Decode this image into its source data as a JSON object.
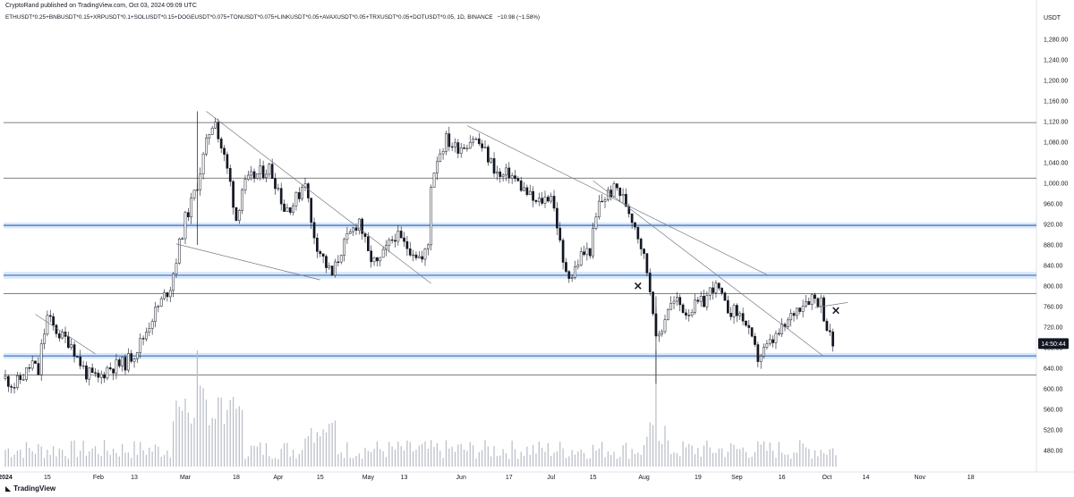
{
  "header": {
    "published": "CryptoRand published on TradingView.com, Oct 03, 2024 09:09 UTC",
    "symbol": "ETHUSDT*0.25+BNBUSDT*0.15+XRPUSDT*0.1+SOLUSDT*0.15+DOGEUSDT*0.075+TONUSDT*0.075+LINKUSDT*0.05+AVAXUSDT*0.05+TRXUSDT*0.05+DOTUSDT*0.05, 1D, BINANCE",
    "change": "−10.98 (−1.58%)"
  },
  "footer": {
    "brand": "TradingView",
    "logo_icon": "tradingview-logo-icon"
  },
  "chart_data": {
    "type": "candlestick",
    "currency": "USDT",
    "price_axis": {
      "ticks": [
        "1,280.00",
        "1,240.00",
        "1,200.00",
        "1,160.00",
        "1,120.00",
        "1,080.00",
        "1,040.00",
        "1,000.00",
        "960.00",
        "920.00",
        "880.00",
        "840.00",
        "800.00",
        "760.00",
        "720.00",
        "680.00",
        "640.00",
        "600.00",
        "560.00",
        "520.00",
        "480.00"
      ],
      "range": [
        462,
        1310
      ]
    },
    "time_axis": {
      "ticks": [
        "2024",
        "15",
        "Feb",
        "13",
        "Mar",
        "18",
        "Apr",
        "15",
        "May",
        "13",
        "Jun",
        "17",
        "Jul",
        "15",
        "Aug",
        "19",
        "Sep",
        "16",
        "Oct",
        "14",
        "Nov",
        "18"
      ]
    },
    "countdown_label": "14:50:44",
    "last_price": 688,
    "horizontal_levels": [
      1118,
      1010,
      785,
      627
    ],
    "support_zones": [
      [
        914,
        922
      ],
      [
        816,
        826
      ],
      [
        660,
        668
      ]
    ],
    "trendlines": [
      {
        "from": [
          "2024-03-08",
          1140
        ],
        "to": [
          "2024-05-22",
          805
        ]
      },
      {
        "from": [
          "2024-02-27",
          882
        ],
        "to": [
          "2024-04-15",
          812
        ]
      },
      {
        "from": [
          "2024-01-11",
          745
        ],
        "to": [
          "2024-01-31",
          668
        ]
      },
      {
        "from": [
          "2024-06-03",
          1112
        ],
        "to": [
          "2024-09-11",
          822
        ]
      },
      {
        "from": [
          "2024-07-15",
          1005
        ],
        "to": [
          "2024-09-30",
          663
        ]
      },
      {
        "from": [
          "2024-09-27",
          758
        ],
        "to": [
          "2024-10-08",
          768
        ]
      }
    ],
    "markers": [
      {
        "date": "2024-07-30",
        "price": 800,
        "symbol": "×"
      },
      {
        "date": "2024-10-04",
        "price": 752,
        "symbol": "×"
      }
    ],
    "close_path": [
      [
        "2024-01-01",
        620
      ],
      [
        "2024-01-04",
        607
      ],
      [
        "2024-01-07",
        625
      ],
      [
        "2024-01-10",
        650
      ],
      [
        "2024-01-12",
        630
      ],
      [
        "2024-01-13",
        680
      ],
      [
        "2024-01-15",
        740
      ],
      [
        "2024-01-17",
        720
      ],
      [
        "2024-01-20",
        700
      ],
      [
        "2024-01-23",
        690
      ],
      [
        "2024-01-25",
        660
      ],
      [
        "2024-01-28",
        630
      ],
      [
        "2024-02-01",
        618
      ],
      [
        "2024-02-04",
        640
      ],
      [
        "2024-02-07",
        645
      ],
      [
        "2024-02-10",
        650
      ],
      [
        "2024-02-13",
        670
      ],
      [
        "2024-02-16",
        700
      ],
      [
        "2024-02-19",
        740
      ],
      [
        "2024-02-22",
        770
      ],
      [
        "2024-02-25",
        800
      ],
      [
        "2024-02-28",
        880
      ],
      [
        "2024-03-01",
        930
      ],
      [
        "2024-03-03",
        960
      ],
      [
        "2024-03-05",
        1000
      ],
      [
        "2024-03-07",
        1050
      ],
      [
        "2024-03-09",
        1100
      ],
      [
        "2024-03-11",
        1130
      ],
      [
        "2024-03-12",
        1090
      ],
      [
        "2024-03-14",
        1050
      ],
      [
        "2024-03-16",
        1000
      ],
      [
        "2024-03-18",
        930
      ],
      [
        "2024-03-20",
        990
      ],
      [
        "2024-03-23",
        1010
      ],
      [
        "2024-03-26",
        1020
      ],
      [
        "2024-03-29",
        1030
      ],
      [
        "2024-04-01",
        990
      ],
      [
        "2024-04-03",
        950
      ],
      [
        "2024-04-06",
        960
      ],
      [
        "2024-04-08",
        980
      ],
      [
        "2024-04-10",
        1010
      ],
      [
        "2024-04-12",
        920
      ],
      [
        "2024-04-14",
        880
      ],
      [
        "2024-04-17",
        840
      ],
      [
        "2024-04-19",
        820
      ],
      [
        "2024-04-22",
        870
      ],
      [
        "2024-04-25",
        900
      ],
      [
        "2024-04-28",
        930
      ],
      [
        "2024-05-01",
        860
      ],
      [
        "2024-05-04",
        840
      ],
      [
        "2024-05-07",
        870
      ],
      [
        "2024-05-10",
        900
      ],
      [
        "2024-05-13",
        880
      ],
      [
        "2024-05-16",
        870
      ],
      [
        "2024-05-19",
        850
      ],
      [
        "2024-05-21",
        880
      ],
      [
        "2024-05-22",
        1000
      ],
      [
        "2024-05-24",
        1050
      ],
      [
        "2024-05-27",
        1085
      ],
      [
        "2024-05-30",
        1070
      ],
      [
        "2024-06-02",
        1075
      ],
      [
        "2024-06-05",
        1090
      ],
      [
        "2024-06-08",
        1070
      ],
      [
        "2024-06-11",
        1040
      ],
      [
        "2024-06-14",
        1010
      ],
      [
        "2024-06-17",
        1020
      ],
      [
        "2024-06-20",
        1000
      ],
      [
        "2024-06-23",
        980
      ],
      [
        "2024-06-26",
        960
      ],
      [
        "2024-06-29",
        970
      ],
      [
        "2024-07-01",
        980
      ],
      [
        "2024-07-03",
        920
      ],
      [
        "2024-07-05",
        840
      ],
      [
        "2024-07-08",
        820
      ],
      [
        "2024-07-11",
        860
      ],
      [
        "2024-07-14",
        870
      ],
      [
        "2024-07-17",
        960
      ],
      [
        "2024-07-20",
        980
      ],
      [
        "2024-07-23",
        990
      ],
      [
        "2024-07-26",
        960
      ],
      [
        "2024-07-29",
        920
      ],
      [
        "2024-07-31",
        880
      ],
      [
        "2024-08-02",
        830
      ],
      [
        "2024-08-04",
        760
      ],
      [
        "2024-08-05",
        690
      ],
      [
        "2024-08-07",
        720
      ],
      [
        "2024-08-09",
        760
      ],
      [
        "2024-08-12",
        770
      ],
      [
        "2024-08-15",
        750
      ],
      [
        "2024-08-18",
        760
      ],
      [
        "2024-08-21",
        770
      ],
      [
        "2024-08-24",
        800
      ],
      [
        "2024-08-26",
        790
      ],
      [
        "2024-08-28",
        760
      ],
      [
        "2024-08-31",
        750
      ],
      [
        "2024-09-03",
        740
      ],
      [
        "2024-09-06",
        690
      ],
      [
        "2024-09-08",
        660
      ],
      [
        "2024-09-11",
        680
      ],
      [
        "2024-09-14",
        700
      ],
      [
        "2024-09-17",
        720
      ],
      [
        "2024-09-20",
        750
      ],
      [
        "2024-09-23",
        770
      ],
      [
        "2024-09-26",
        780
      ],
      [
        "2024-09-29",
        770
      ],
      [
        "2024-10-01",
        720
      ],
      [
        "2024-10-02",
        700
      ],
      [
        "2024-10-03",
        688
      ]
    ],
    "volume_spikes": [
      {
        "date": "2024-03-05",
        "value": 1.0
      },
      {
        "date": "2024-08-05",
        "value": 1.0
      }
    ]
  }
}
